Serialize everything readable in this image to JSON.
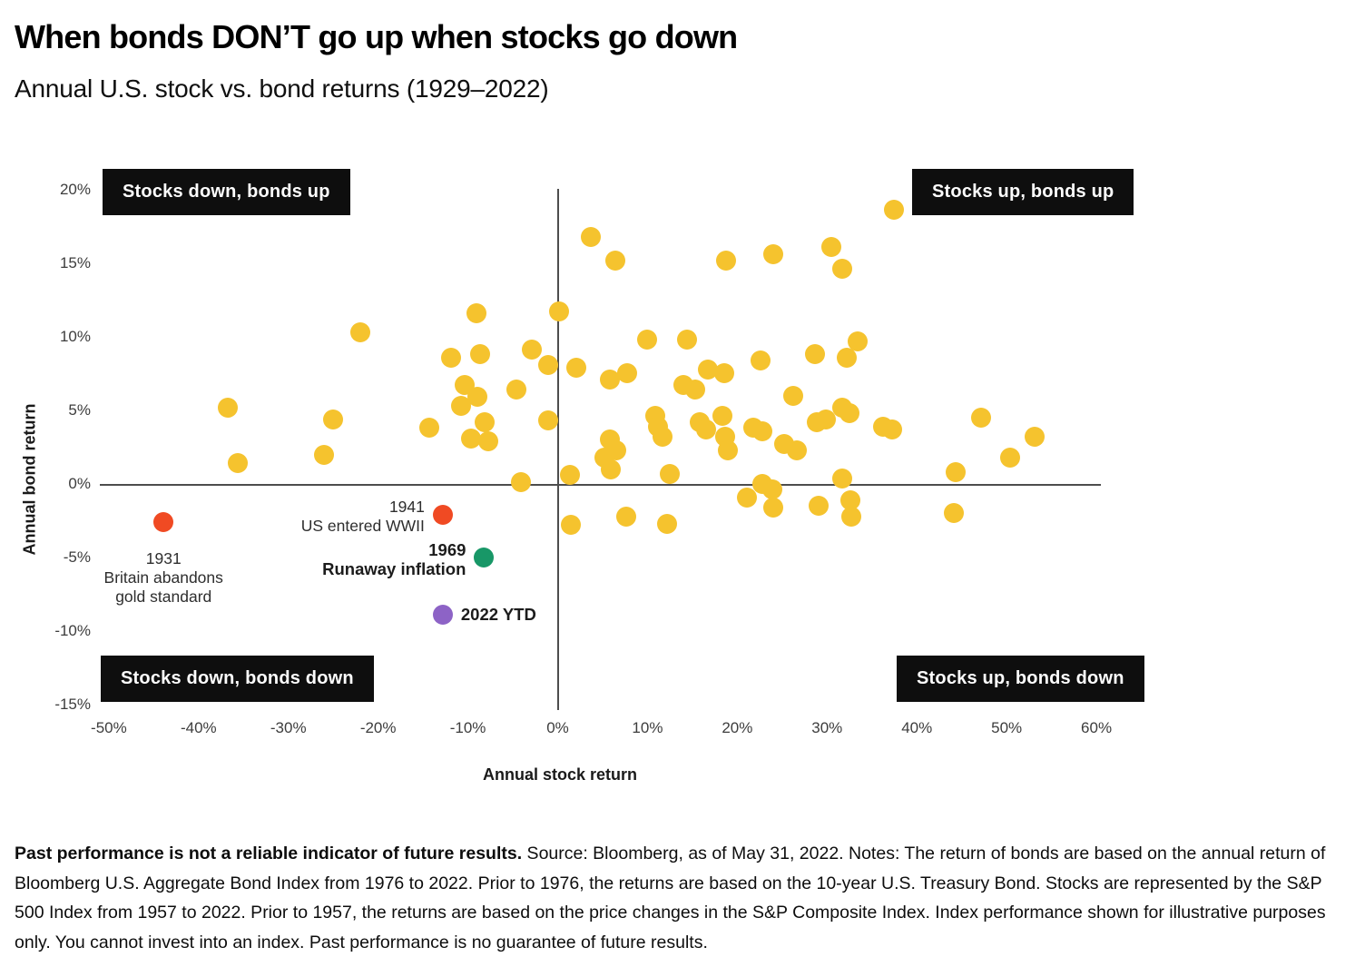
{
  "page": {
    "title": "When bonds DON’T go up when stocks go down",
    "subtitle": "Annual U.S. stock vs. bond returns (1929–2022)"
  },
  "footnote": {
    "bold_lead": "Past performance is not a reliable indicator of future results.",
    "text": " Source: Bloomberg, as of May 31, 2022. Notes: The return of bonds are based on the annual return of Bloomberg U.S. Aggregate Bond Index from 1976 to 2022. Prior to 1976, the returns are based on the 10-year U.S. Treasury Bond. Stocks are represented by the S&P 500 Index from 1957 to 2022. Prior to 1957, the returns are based on the price changes in the S&P Composite Index. Index performance shown for illustrative purposes only. You cannot invest into an index. Past performance is no guarantee of future results."
  },
  "chart_data": {
    "type": "scatter",
    "title": "When bonds DON’T go up when stocks go down",
    "subtitle": "Annual U.S. stock vs. bond returns (1929–2022)",
    "xlabel": "Annual stock return",
    "ylabel": "Annual bond return",
    "xlim": [
      -51,
      60.5
    ],
    "ylim": [
      -15.3,
      21.9
    ],
    "grid": false,
    "quadrant_labels": [
      {
        "id": "top-left",
        "label": "Stocks down, bonds up"
      },
      {
        "id": "top-right",
        "label": "Stocks up, bonds up"
      },
      {
        "id": "bottom-left",
        "label": "Stocks down, bonds down"
      },
      {
        "id": "bottom-right",
        "label": "Stocks up, bonds down"
      }
    ],
    "x_ticks": [
      {
        "value": -50,
        "label": "-50%"
      },
      {
        "value": -40,
        "label": "-40%"
      },
      {
        "value": -30,
        "label": "-30%"
      },
      {
        "value": -20,
        "label": "-20%"
      },
      {
        "value": -10,
        "label": "-10%"
      },
      {
        "value": 0,
        "label": "0%"
      },
      {
        "value": 10,
        "label": "10%"
      },
      {
        "value": 20,
        "label": "20%"
      },
      {
        "value": 30,
        "label": "30%"
      },
      {
        "value": 40,
        "label": "40%"
      },
      {
        "value": 50,
        "label": "50%"
      },
      {
        "value": 60,
        "label": "60%"
      }
    ],
    "y_ticks": [
      {
        "value": 20,
        "label": "20%"
      },
      {
        "value": 15,
        "label": "15%"
      },
      {
        "value": 10,
        "label": "10%"
      },
      {
        "value": 5,
        "label": "5%"
      },
      {
        "value": 0,
        "label": "0%"
      },
      {
        "value": -5,
        "label": "-5%"
      },
      {
        "value": -10,
        "label": "-10%"
      },
      {
        "value": -15,
        "label": "-15%"
      }
    ],
    "series": [
      {
        "name": "Annual returns (other years)",
        "color": "#F5C32E",
        "radius": 11,
        "points": [
          [
            -36.7,
            5.2
          ],
          [
            -35.6,
            1.4
          ],
          [
            -26.0,
            2.0
          ],
          [
            -25.0,
            4.4
          ],
          [
            -22.0,
            10.3
          ],
          [
            -14.3,
            3.8
          ],
          [
            -11.9,
            8.6
          ],
          [
            -10.8,
            5.3
          ],
          [
            -10.4,
            6.7
          ],
          [
            -9.7,
            3.1
          ],
          [
            -9.0,
            11.6
          ],
          [
            -8.9,
            5.9
          ],
          [
            -8.6,
            8.8
          ],
          [
            -8.1,
            4.2
          ],
          [
            -7.7,
            2.9
          ],
          [
            -4.6,
            6.4
          ],
          [
            -4.1,
            0.1
          ],
          [
            -2.9,
            9.1
          ],
          [
            -1.1,
            8.1
          ],
          [
            -1.1,
            4.3
          ],
          [
            0.2,
            11.7
          ],
          [
            1.4,
            0.6
          ],
          [
            1.5,
            -2.8
          ],
          [
            2.1,
            7.9
          ],
          [
            3.7,
            16.8
          ],
          [
            5.2,
            1.8
          ],
          [
            5.8,
            7.1
          ],
          [
            5.8,
            3.0
          ],
          [
            5.9,
            1.0
          ],
          [
            6.4,
            15.2
          ],
          [
            6.5,
            2.3
          ],
          [
            7.6,
            -2.2
          ],
          [
            7.7,
            7.5
          ],
          [
            10.0,
            9.8
          ],
          [
            10.9,
            4.6
          ],
          [
            11.2,
            3.9
          ],
          [
            11.7,
            3.2
          ],
          [
            12.2,
            -2.7
          ],
          [
            12.5,
            0.7
          ],
          [
            14.0,
            6.7
          ],
          [
            14.4,
            9.8
          ],
          [
            15.3,
            6.4
          ],
          [
            15.8,
            4.2
          ],
          [
            16.5,
            3.7
          ],
          [
            16.7,
            7.8
          ],
          [
            18.3,
            4.6
          ],
          [
            18.5,
            7.5
          ],
          [
            18.6,
            3.2
          ],
          [
            18.8,
            15.2
          ],
          [
            19.0,
            2.3
          ],
          [
            21.1,
            -0.9
          ],
          [
            21.8,
            3.8
          ],
          [
            22.6,
            8.4
          ],
          [
            22.8,
            3.6
          ],
          [
            22.8,
            0.0
          ],
          [
            23.9,
            -0.4
          ],
          [
            24.0,
            15.6
          ],
          [
            24.0,
            -1.6
          ],
          [
            25.2,
            2.7
          ],
          [
            26.2,
            6.0
          ],
          [
            26.6,
            2.3
          ],
          [
            28.7,
            8.8
          ],
          [
            28.9,
            4.2
          ],
          [
            29.1,
            -1.5
          ],
          [
            29.9,
            4.4
          ],
          [
            30.5,
            16.1
          ],
          [
            31.7,
            14.6
          ],
          [
            31.7,
            5.2
          ],
          [
            31.7,
            0.4
          ],
          [
            32.2,
            8.6
          ],
          [
            32.5,
            4.8
          ],
          [
            32.6,
            -1.1
          ],
          [
            32.7,
            -2.2
          ],
          [
            33.4,
            9.7
          ],
          [
            36.2,
            3.9
          ],
          [
            37.3,
            3.7
          ],
          [
            37.5,
            18.6
          ],
          [
            44.1,
            -2.0
          ],
          [
            44.3,
            0.8
          ],
          [
            47.2,
            4.5
          ],
          [
            50.4,
            1.8
          ],
          [
            53.1,
            3.2
          ]
        ]
      },
      {
        "name": "1931",
        "color": "#F04A23",
        "radius": 11,
        "points": [
          [
            -43.9,
            -2.6
          ]
        ]
      },
      {
        "name": "1941",
        "color": "#F04A23",
        "radius": 11,
        "points": [
          [
            -12.8,
            -2.1
          ]
        ]
      },
      {
        "name": "1969",
        "color": "#189767",
        "radius": 11,
        "points": [
          [
            -8.2,
            -5.0
          ]
        ]
      },
      {
        "name": "2022 YTD",
        "color": "#8D63C6",
        "radius": 11,
        "points": [
          [
            -12.8,
            -8.9
          ]
        ]
      }
    ],
    "annotations": [
      {
        "lines": [
          "1931",
          "Britain abandons",
          "gold standard"
        ],
        "bold": false,
        "anchor": "center-below",
        "x": -43.9,
        "y": -2.6
      },
      {
        "lines": [
          "1941",
          "US entered WWII"
        ],
        "bold": false,
        "anchor": "left-of",
        "x": -12.8,
        "y": -2.1
      },
      {
        "lines": [
          "1969",
          "Runaway inflation"
        ],
        "bold": true,
        "anchor": "left-of",
        "x": -8.2,
        "y": -5.0
      },
      {
        "lines": [
          "2022 YTD"
        ],
        "bold": true,
        "anchor": "right-of",
        "x": -12.8,
        "y": -8.9
      }
    ]
  }
}
